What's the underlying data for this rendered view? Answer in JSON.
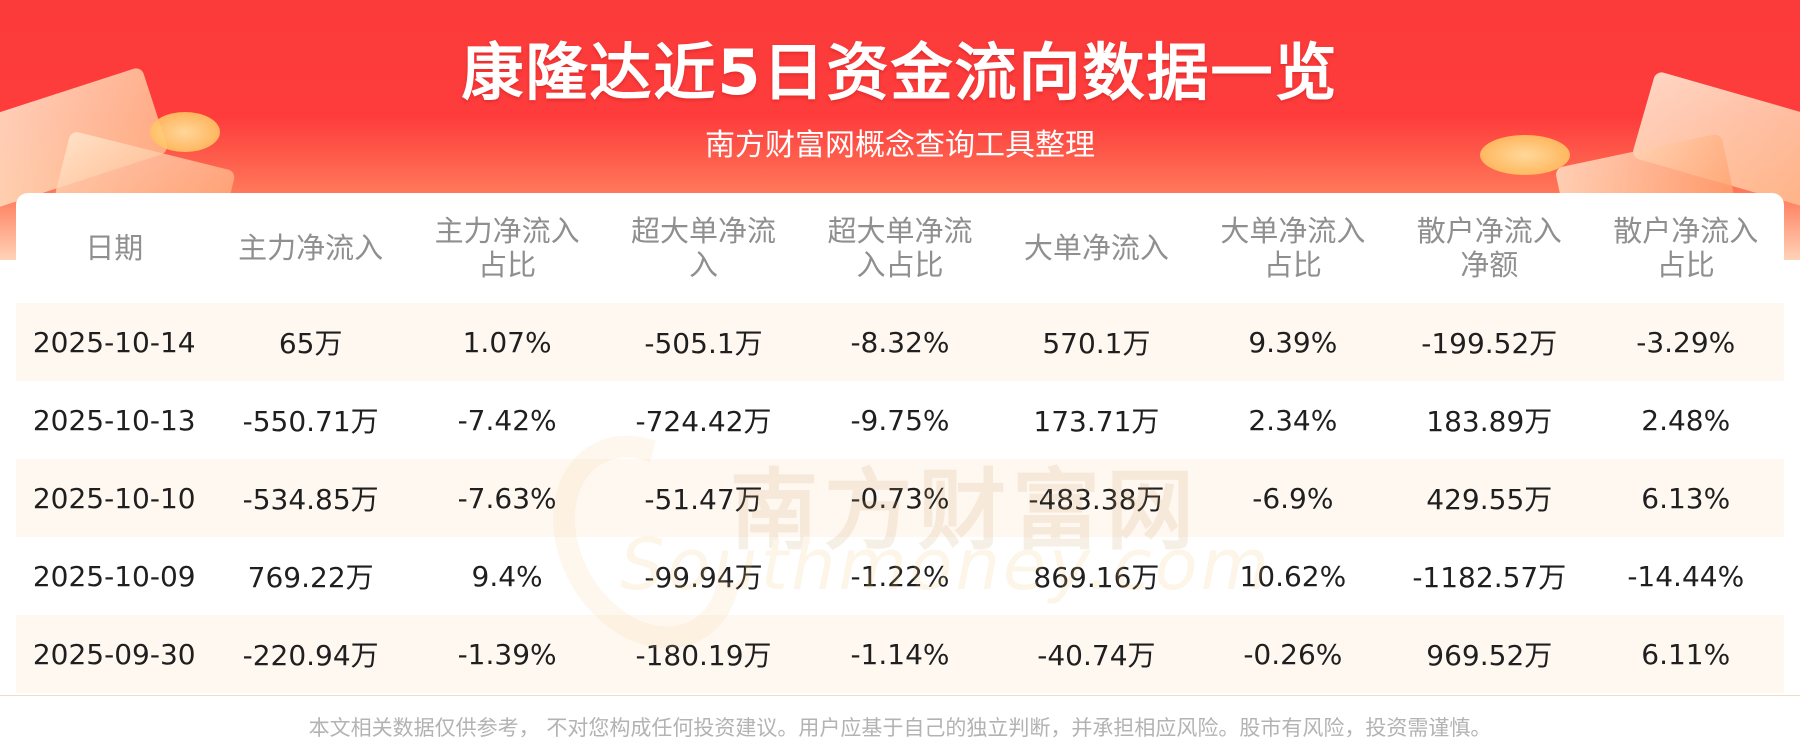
{
  "header": {
    "title": "康隆达近5日资金流向数据一览",
    "subtitle": "南方财富网概念查询工具整理"
  },
  "watermark": {
    "cn": "南方财富网",
    "en": "Southmoney.com"
  },
  "table": {
    "columns": [
      {
        "lines": [
          "日期"
        ]
      },
      {
        "lines": [
          "主力净流入"
        ]
      },
      {
        "lines": [
          "主力净流入",
          "占比"
        ]
      },
      {
        "lines": [
          "超大单净流",
          "入"
        ]
      },
      {
        "lines": [
          "超大单净流",
          "入占比"
        ]
      },
      {
        "lines": [
          "大单净流入"
        ]
      },
      {
        "lines": [
          "大单净流入",
          "占比"
        ]
      },
      {
        "lines": [
          "散户净流入",
          "净额"
        ]
      },
      {
        "lines": [
          "散户净流入",
          "占比"
        ]
      }
    ],
    "rows": [
      [
        "2025-10-14",
        "65万",
        "1.07%",
        "-505.1万",
        "-8.32%",
        "570.1万",
        "9.39%",
        "-199.52万",
        "-3.29%"
      ],
      [
        "2025-10-13",
        "-550.71万",
        "-7.42%",
        "-724.42万",
        "-9.75%",
        "173.71万",
        "2.34%",
        "183.89万",
        "2.48%"
      ],
      [
        "2025-10-10",
        "-534.85万",
        "-7.63%",
        "-51.47万",
        "-0.73%",
        "-483.38万",
        "-6.9%",
        "429.55万",
        "6.13%"
      ],
      [
        "2025-10-09",
        "769.22万",
        "9.4%",
        "-99.94万",
        "-1.22%",
        "869.16万",
        "10.62%",
        "-1182.57万",
        "-14.44%"
      ],
      [
        "2025-09-30",
        "-220.94万",
        "-1.39%",
        "-180.19万",
        "-1.14%",
        "-40.74万",
        "-0.26%",
        "969.52万",
        "6.11%"
      ]
    ]
  },
  "footer": {
    "disclaimer": "本文相关数据仅供参考， 不对您构成任何投资建议。用户应基于自己的独立判断，并承担相应风险。股市有风险，投资需谨慎。"
  },
  "colors": {
    "header_red": "#fb3a3a",
    "stripe": "#fff8f1",
    "header_text": "#8f8f8f"
  }
}
